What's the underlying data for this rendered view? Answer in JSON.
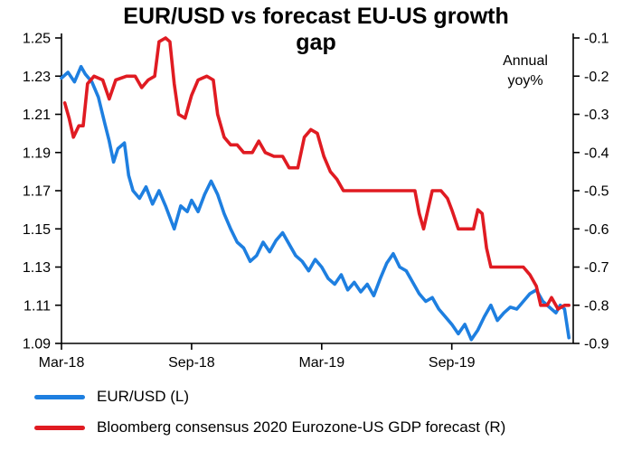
{
  "chart_data": {
    "type": "line",
    "title": "EUR/USD vs forecast EU-US growth gap",
    "annotation": {
      "lines": [
        "Annual",
        "yoy%"
      ]
    },
    "background": "#FFFFFF",
    "grid": false,
    "legend_position": "bottom-left",
    "x_range": [
      0,
      23.6
    ],
    "x_ticks": [
      {
        "pos": 0,
        "label": "Mar-18"
      },
      {
        "pos": 6,
        "label": "Sep-18"
      },
      {
        "pos": 12,
        "label": "Mar-19"
      },
      {
        "pos": 18,
        "label": "Sep-19"
      }
    ],
    "left_axis": {
      "min": 1.09,
      "max": 1.25,
      "tick_labels": [
        "1.09",
        "1.11",
        "1.13",
        "1.15",
        "1.17",
        "1.19",
        "1.21",
        "1.23",
        "1.25"
      ]
    },
    "right_axis": {
      "min": -0.9,
      "max": -0.1,
      "tick_labels": [
        "-0.9",
        "-0.8",
        "-0.7",
        "-0.6",
        "-0.5",
        "-0.4",
        "-0.3",
        "-0.2",
        "-0.1"
      ]
    },
    "series": [
      {
        "id": "eur-usd",
        "name": "EUR/USD (L)",
        "axis": "left",
        "color": "#1E7FE0",
        "points": [
          [
            0,
            1.229
          ],
          [
            0.3,
            1.232
          ],
          [
            0.6,
            1.227
          ],
          [
            0.9,
            1.235
          ],
          [
            1.1,
            1.231
          ],
          [
            1.4,
            1.227
          ],
          [
            1.7,
            1.219
          ],
          [
            2,
            1.205
          ],
          [
            2.2,
            1.196
          ],
          [
            2.4,
            1.185
          ],
          [
            2.6,
            1.192
          ],
          [
            2.9,
            1.195
          ],
          [
            3.1,
            1.178
          ],
          [
            3.3,
            1.17
          ],
          [
            3.6,
            1.166
          ],
          [
            3.9,
            1.172
          ],
          [
            4.2,
            1.163
          ],
          [
            4.5,
            1.17
          ],
          [
            4.8,
            1.162
          ],
          [
            5,
            1.156
          ],
          [
            5.2,
            1.15
          ],
          [
            5.5,
            1.162
          ],
          [
            5.8,
            1.159
          ],
          [
            6,
            1.165
          ],
          [
            6.3,
            1.159
          ],
          [
            6.6,
            1.168
          ],
          [
            6.9,
            1.175
          ],
          [
            7.2,
            1.168
          ],
          [
            7.5,
            1.158
          ],
          [
            7.8,
            1.15
          ],
          [
            8.1,
            1.143
          ],
          [
            8.4,
            1.14
          ],
          [
            8.7,
            1.133
          ],
          [
            9,
            1.136
          ],
          [
            9.3,
            1.143
          ],
          [
            9.6,
            1.138
          ],
          [
            9.9,
            1.144
          ],
          [
            10.2,
            1.148
          ],
          [
            10.5,
            1.142
          ],
          [
            10.8,
            1.136
          ],
          [
            11.1,
            1.133
          ],
          [
            11.4,
            1.128
          ],
          [
            11.7,
            1.134
          ],
          [
            12,
            1.13
          ],
          [
            12.3,
            1.124
          ],
          [
            12.6,
            1.121
          ],
          [
            12.9,
            1.126
          ],
          [
            13.2,
            1.118
          ],
          [
            13.5,
            1.122
          ],
          [
            13.8,
            1.117
          ],
          [
            14.1,
            1.121
          ],
          [
            14.4,
            1.115
          ],
          [
            14.7,
            1.124
          ],
          [
            15,
            1.132
          ],
          [
            15.3,
            1.137
          ],
          [
            15.6,
            1.13
          ],
          [
            15.9,
            1.128
          ],
          [
            16.2,
            1.122
          ],
          [
            16.5,
            1.116
          ],
          [
            16.8,
            1.112
          ],
          [
            17.1,
            1.114
          ],
          [
            17.4,
            1.108
          ],
          [
            17.7,
            1.104
          ],
          [
            18,
            1.1
          ],
          [
            18.3,
            1.095
          ],
          [
            18.6,
            1.1
          ],
          [
            18.9,
            1.092
          ],
          [
            19.2,
            1.097
          ],
          [
            19.5,
            1.104
          ],
          [
            19.8,
            1.11
          ],
          [
            20.1,
            1.102
          ],
          [
            20.4,
            1.106
          ],
          [
            20.7,
            1.109
          ],
          [
            21,
            1.108
          ],
          [
            21.3,
            1.112
          ],
          [
            21.6,
            1.116
          ],
          [
            21.9,
            1.118
          ],
          [
            22.2,
            1.112
          ],
          [
            22.5,
            1.109
          ],
          [
            22.8,
            1.106
          ],
          [
            23,
            1.11
          ],
          [
            23.2,
            1.108
          ],
          [
            23.4,
            1.093
          ]
        ]
      },
      {
        "id": "gdp-forecast-gap",
        "name": "Bloomberg consensus 2020 Eurozone-US GDP forecast (R)",
        "axis": "right",
        "color": "#E01B22",
        "points": [
          [
            0.15,
            -0.27
          ],
          [
            0.35,
            -0.31
          ],
          [
            0.55,
            -0.36
          ],
          [
            0.8,
            -0.33
          ],
          [
            1,
            -0.33
          ],
          [
            1.2,
            -0.22
          ],
          [
            1.5,
            -0.2
          ],
          [
            1.9,
            -0.21
          ],
          [
            2.2,
            -0.26
          ],
          [
            2.5,
            -0.21
          ],
          [
            3,
            -0.2
          ],
          [
            3.4,
            -0.2
          ],
          [
            3.7,
            -0.23
          ],
          [
            4,
            -0.21
          ],
          [
            4.3,
            -0.2
          ],
          [
            4.5,
            -0.11
          ],
          [
            4.8,
            -0.1
          ],
          [
            5,
            -0.11
          ],
          [
            5.2,
            -0.22
          ],
          [
            5.4,
            -0.3
          ],
          [
            5.7,
            -0.31
          ],
          [
            6,
            -0.25
          ],
          [
            6.3,
            -0.21
          ],
          [
            6.7,
            -0.2
          ],
          [
            7,
            -0.21
          ],
          [
            7.2,
            -0.3
          ],
          [
            7.5,
            -0.36
          ],
          [
            7.8,
            -0.38
          ],
          [
            8.1,
            -0.38
          ],
          [
            8.4,
            -0.4
          ],
          [
            8.8,
            -0.4
          ],
          [
            9.1,
            -0.37
          ],
          [
            9.4,
            -0.4
          ],
          [
            9.8,
            -0.41
          ],
          [
            10.2,
            -0.41
          ],
          [
            10.5,
            -0.44
          ],
          [
            10.9,
            -0.44
          ],
          [
            11.2,
            -0.36
          ],
          [
            11.5,
            -0.34
          ],
          [
            11.8,
            -0.35
          ],
          [
            12.1,
            -0.41
          ],
          [
            12.4,
            -0.45
          ],
          [
            12.7,
            -0.47
          ],
          [
            13,
            -0.5
          ],
          [
            13.5,
            -0.5
          ],
          [
            14,
            -0.5
          ],
          [
            14.5,
            -0.5
          ],
          [
            15,
            -0.5
          ],
          [
            15.5,
            -0.5
          ],
          [
            16,
            -0.5
          ],
          [
            16.3,
            -0.5
          ],
          [
            16.5,
            -0.56
          ],
          [
            16.7,
            -0.6
          ],
          [
            16.9,
            -0.55
          ],
          [
            17.1,
            -0.5
          ],
          [
            17.5,
            -0.5
          ],
          [
            17.8,
            -0.52
          ],
          [
            18,
            -0.55
          ],
          [
            18.3,
            -0.6
          ],
          [
            18.7,
            -0.6
          ],
          [
            19,
            -0.6
          ],
          [
            19.2,
            -0.55
          ],
          [
            19.4,
            -0.56
          ],
          [
            19.6,
            -0.65
          ],
          [
            19.8,
            -0.7
          ],
          [
            20.2,
            -0.7
          ],
          [
            20.6,
            -0.7
          ],
          [
            21,
            -0.7
          ],
          [
            21.3,
            -0.7
          ],
          [
            21.6,
            -0.72
          ],
          [
            21.9,
            -0.75
          ],
          [
            22.1,
            -0.8
          ],
          [
            22.4,
            -0.8
          ],
          [
            22.6,
            -0.78
          ],
          [
            22.9,
            -0.81
          ],
          [
            23.2,
            -0.8
          ],
          [
            23.4,
            -0.8
          ]
        ]
      }
    ]
  }
}
